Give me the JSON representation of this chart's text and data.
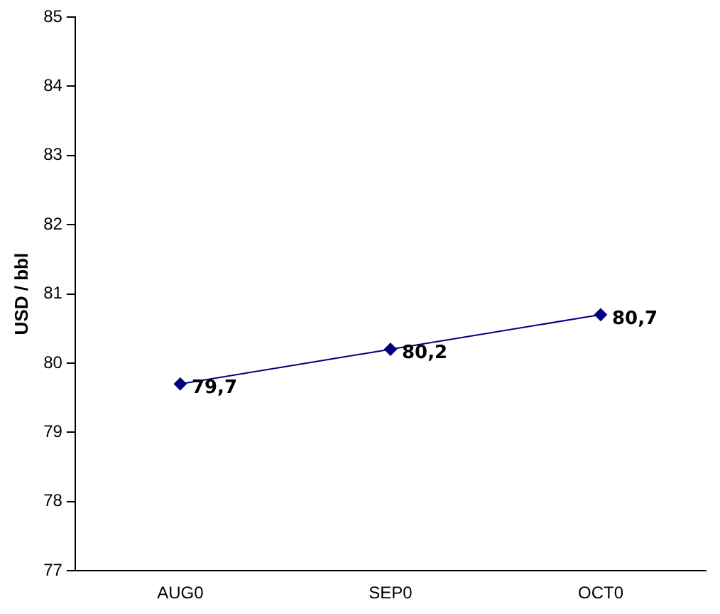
{
  "chart_data": {
    "type": "line",
    "ylabel": "USD / bbl",
    "categories": [
      "AUG0",
      "SEP0",
      "OCT0"
    ],
    "series": [
      {
        "color": "#000080",
        "values": [
          79.7,
          80.2,
          80.7
        ],
        "value_labels": [
          "79,7",
          "80,2",
          "80,7"
        ]
      }
    ],
    "ylim": [
      77,
      85
    ],
    "yticks": [
      77,
      78,
      79,
      80,
      81,
      82,
      83,
      84,
      85
    ],
    "grid": false,
    "legend": false,
    "marker": "diamond",
    "line_style": "solid"
  }
}
